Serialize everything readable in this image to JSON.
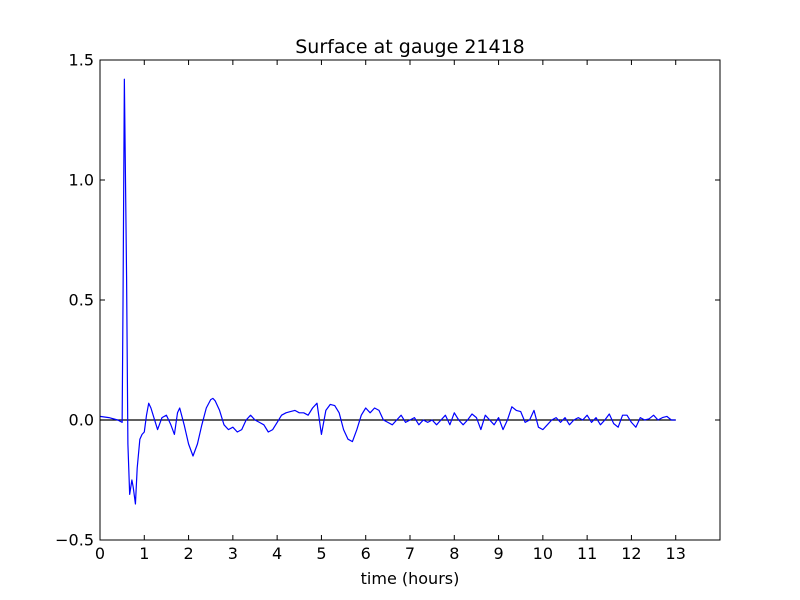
{
  "chart_data": {
    "type": "line",
    "title": "Surface at gauge 21418",
    "xlabel": "time (hours)",
    "ylabel": "",
    "xlim": [
      0,
      14
    ],
    "ylim": [
      -0.5,
      1.5
    ],
    "xticks": [
      0,
      1,
      2,
      3,
      4,
      5,
      6,
      7,
      8,
      9,
      10,
      11,
      12,
      13
    ],
    "xtick_labels": [
      "0",
      "1",
      "2",
      "3",
      "4",
      "5",
      "6",
      "7",
      "8",
      "9",
      "10",
      "11",
      "12",
      "13"
    ],
    "yticks": [
      -0.5,
      0.0,
      0.5,
      1.0,
      1.5
    ],
    "ytick_labels": [
      "−0.5",
      "0.0",
      "0.5",
      "1.0",
      "1.5"
    ],
    "grid": false,
    "colors": {
      "series": "#0000ff",
      "zero_line": "#000000",
      "frame": "#000000"
    },
    "zero_line": {
      "y": 0,
      "x": [
        0,
        13
      ]
    },
    "series": [
      {
        "x": [
          0,
          0.2,
          0.4,
          0.5,
          0.52,
          0.55,
          0.6,
          0.63,
          0.67,
          0.72,
          0.75,
          0.8,
          0.84,
          0.9,
          0.95,
          1.0,
          1.05,
          1.1,
          1.15,
          1.2,
          1.3,
          1.4,
          1.5,
          1.6,
          1.68,
          1.75,
          1.8,
          1.9,
          2.0,
          2.1,
          2.2,
          2.3,
          2.4,
          2.5,
          2.55,
          2.6,
          2.7,
          2.8,
          2.9,
          3.0,
          3.1,
          3.2,
          3.3,
          3.4,
          3.5,
          3.6,
          3.7,
          3.8,
          3.9,
          4.0,
          4.1,
          4.2,
          4.3,
          4.4,
          4.5,
          4.6,
          4.7,
          4.8,
          4.9,
          5.0,
          5.1,
          5.2,
          5.3,
          5.4,
          5.5,
          5.6,
          5.7,
          5.8,
          5.9,
          6.0,
          6.1,
          6.2,
          6.3,
          6.4,
          6.5,
          6.6,
          6.7,
          6.8,
          6.9,
          7.0,
          7.1,
          7.2,
          7.3,
          7.4,
          7.5,
          7.6,
          7.7,
          7.8,
          7.9,
          8.0,
          8.1,
          8.2,
          8.3,
          8.4,
          8.5,
          8.6,
          8.7,
          8.8,
          8.9,
          9.0,
          9.1,
          9.2,
          9.3,
          9.4,
          9.5,
          9.6,
          9.7,
          9.8,
          9.9,
          10.0,
          10.1,
          10.2,
          10.3,
          10.4,
          10.5,
          10.6,
          10.7,
          10.8,
          10.9,
          11.0,
          11.1,
          11.2,
          11.3,
          11.4,
          11.5,
          11.6,
          11.7,
          11.8,
          11.9,
          12.0,
          12.1,
          12.2,
          12.3,
          12.4,
          12.5,
          12.6,
          12.7,
          12.8,
          12.9,
          13.0
        ],
        "values": [
          0.015,
          0.01,
          0.0,
          -0.01,
          0.5,
          1.42,
          0.6,
          -0.1,
          -0.31,
          -0.25,
          -0.28,
          -0.35,
          -0.2,
          -0.08,
          -0.06,
          -0.05,
          0.02,
          0.07,
          0.05,
          0.02,
          -0.04,
          0.01,
          0.02,
          -0.02,
          -0.06,
          0.03,
          0.05,
          -0.02,
          -0.1,
          -0.15,
          -0.1,
          -0.02,
          0.05,
          0.085,
          0.09,
          0.08,
          0.04,
          -0.02,
          -0.04,
          -0.03,
          -0.05,
          -0.04,
          0.0,
          0.02,
          0.0,
          -0.01,
          -0.02,
          -0.05,
          -0.04,
          -0.01,
          0.02,
          0.03,
          0.035,
          0.04,
          0.03,
          0.03,
          0.02,
          0.05,
          0.07,
          -0.06,
          0.04,
          0.065,
          0.06,
          0.03,
          -0.04,
          -0.08,
          -0.09,
          -0.04,
          0.02,
          0.05,
          0.03,
          0.05,
          0.04,
          0.0,
          -0.01,
          -0.02,
          0.0,
          0.02,
          -0.01,
          0.0,
          0.01,
          -0.02,
          0.0,
          -0.01,
          0.0,
          -0.02,
          0.0,
          0.02,
          -0.02,
          0.03,
          0.0,
          -0.02,
          0.0,
          0.025,
          0.01,
          -0.04,
          0.02,
          0.0,
          -0.02,
          0.01,
          -0.04,
          0.0,
          0.055,
          0.04,
          0.035,
          -0.01,
          0.0,
          0.04,
          -0.03,
          -0.04,
          -0.02,
          0.0,
          0.01,
          -0.01,
          0.01,
          -0.02,
          0.0,
          0.01,
          0.0,
          0.02,
          -0.01,
          0.01,
          -0.02,
          0.0,
          0.025,
          -0.015,
          -0.03,
          0.02,
          0.02,
          -0.01,
          -0.03,
          0.01,
          0.0,
          0.005,
          0.02,
          0.0,
          0.01,
          0.015,
          0.0,
          0.0
        ]
      }
    ]
  }
}
